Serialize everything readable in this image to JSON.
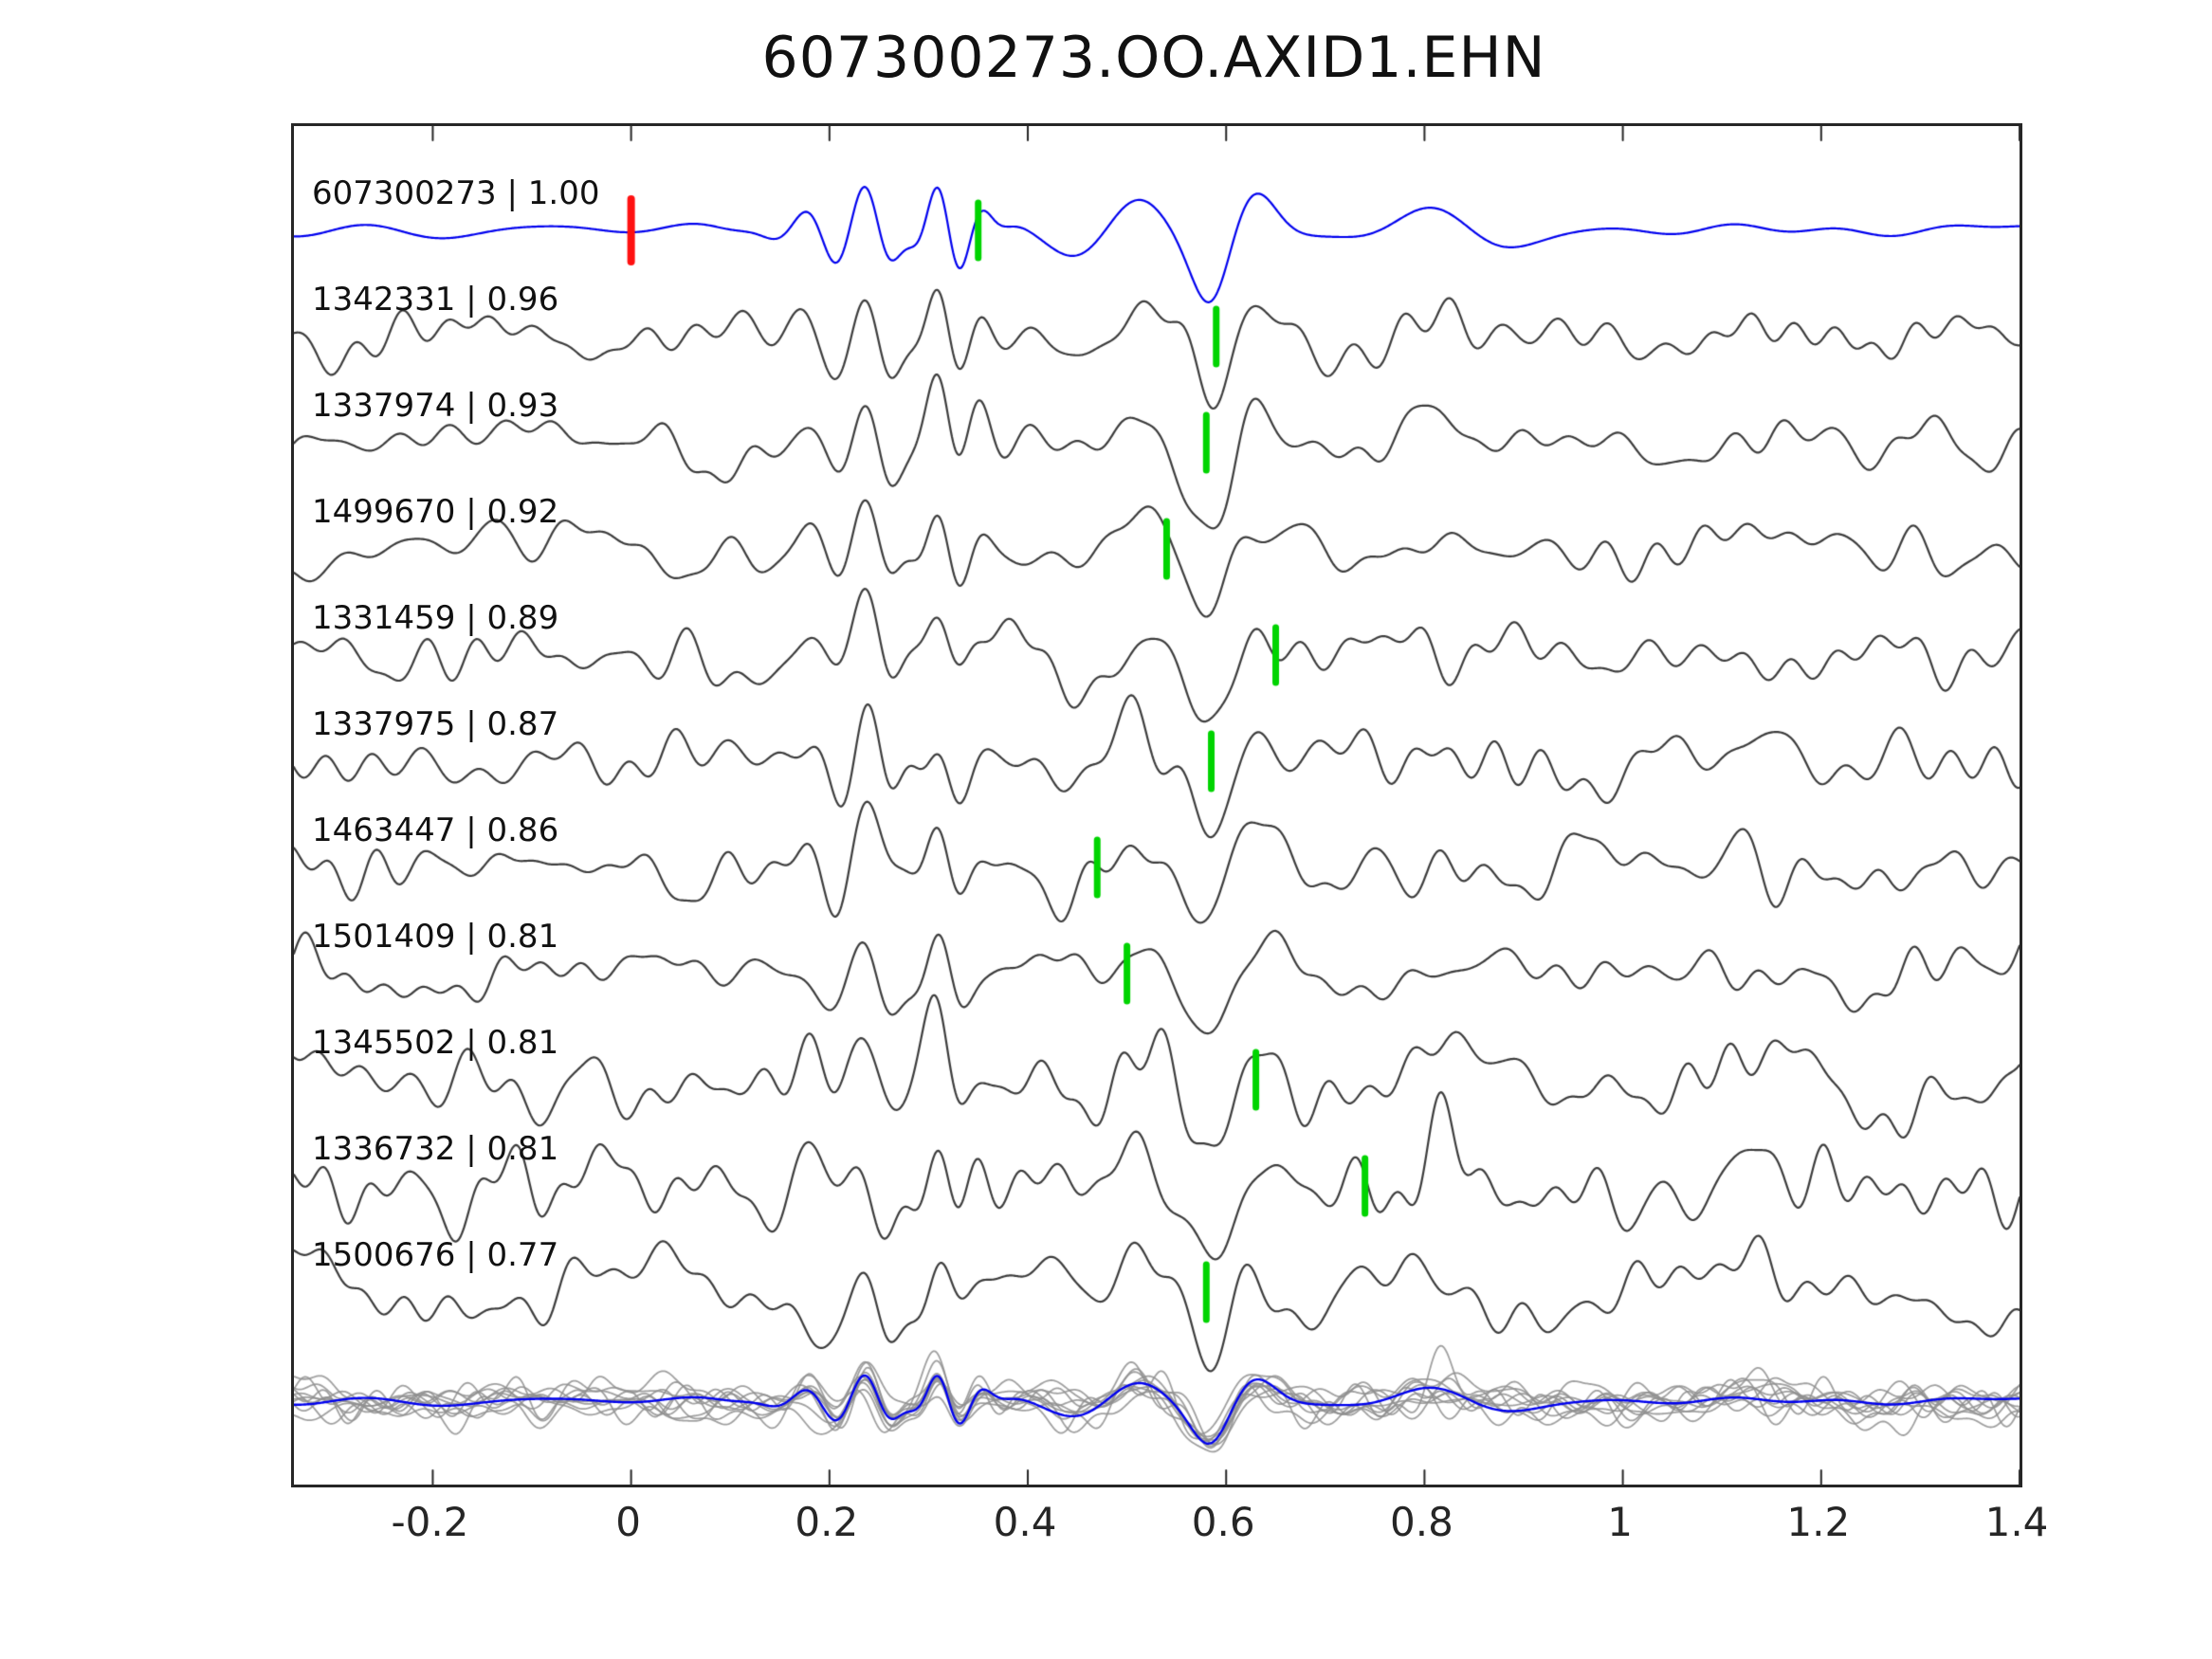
{
  "title": "607300273.OO.AXID1.EHN",
  "chart_data": {
    "type": "line",
    "title": "607300273.OO.AXID1.EHN",
    "xlabel": "",
    "ylabel": "",
    "xlim": [
      -0.34,
      1.4
    ],
    "grid": false,
    "legend": "none",
    "x_ticks": [
      -0.2,
      0,
      0.2,
      0.4,
      0.6,
      0.8,
      1,
      1.2,
      1.4
    ],
    "x_tick_labels": [
      "-0.2",
      "0",
      "0.2",
      "0.4",
      "0.6",
      "0.8",
      "1",
      "1.2",
      "1.4"
    ],
    "colors": {
      "template": "#0000ee",
      "match": "#3c3c3c",
      "overlay": "#8f8f8f",
      "pick": "#00d400",
      "reference": "#ff1111",
      "axis": "#262626",
      "background": "#ffffff"
    },
    "traces": [
      {
        "label": "607300273 | 1.00",
        "event_id": "607300273",
        "correlation": "1.00",
        "role": "template",
        "picks": [
          {
            "x": 0.0,
            "type": "reference"
          },
          {
            "x": 0.35,
            "type": "pick"
          }
        ]
      },
      {
        "label": "1342331 | 0.96",
        "event_id": "1342331",
        "correlation": "0.96",
        "role": "match",
        "picks": [
          {
            "x": 0.59,
            "type": "pick"
          }
        ]
      },
      {
        "label": "1337974 | 0.93",
        "event_id": "1337974",
        "correlation": "0.93",
        "role": "match",
        "picks": [
          {
            "x": 0.58,
            "type": "pick"
          }
        ]
      },
      {
        "label": "1499670 | 0.92",
        "event_id": "1499670",
        "correlation": "0.92",
        "role": "match",
        "picks": [
          {
            "x": 0.54,
            "type": "pick"
          }
        ]
      },
      {
        "label": "1331459 | 0.89",
        "event_id": "1331459",
        "correlation": "0.89",
        "role": "match",
        "picks": [
          {
            "x": 0.65,
            "type": "pick"
          }
        ]
      },
      {
        "label": "1337975 | 0.87",
        "event_id": "1337975",
        "correlation": "0.87",
        "role": "match",
        "picks": [
          {
            "x": 0.585,
            "type": "pick"
          }
        ]
      },
      {
        "label": "1463447 | 0.86",
        "event_id": "1463447",
        "correlation": "0.86",
        "role": "match",
        "picks": [
          {
            "x": 0.47,
            "type": "pick"
          }
        ]
      },
      {
        "label": "1501409 | 0.81",
        "event_id": "1501409",
        "correlation": "0.81",
        "role": "match",
        "picks": [
          {
            "x": 0.5,
            "type": "pick"
          }
        ]
      },
      {
        "label": "1345502 | 0.81",
        "event_id": "1345502",
        "correlation": "0.81",
        "role": "match",
        "picks": [
          {
            "x": 0.63,
            "type": "pick"
          }
        ]
      },
      {
        "label": "1336732 | 0.81",
        "event_id": "1336732",
        "correlation": "0.81",
        "role": "match",
        "picks": [
          {
            "x": 0.74,
            "type": "pick"
          }
        ]
      },
      {
        "label": "1500676 | 0.77",
        "event_id": "1500676",
        "correlation": "0.77",
        "role": "match",
        "picks": [
          {
            "x": 0.58,
            "type": "pick"
          }
        ]
      }
    ],
    "overlay_row": {
      "description": "all matched traces superimposed in gray with the blue template on top"
    }
  }
}
